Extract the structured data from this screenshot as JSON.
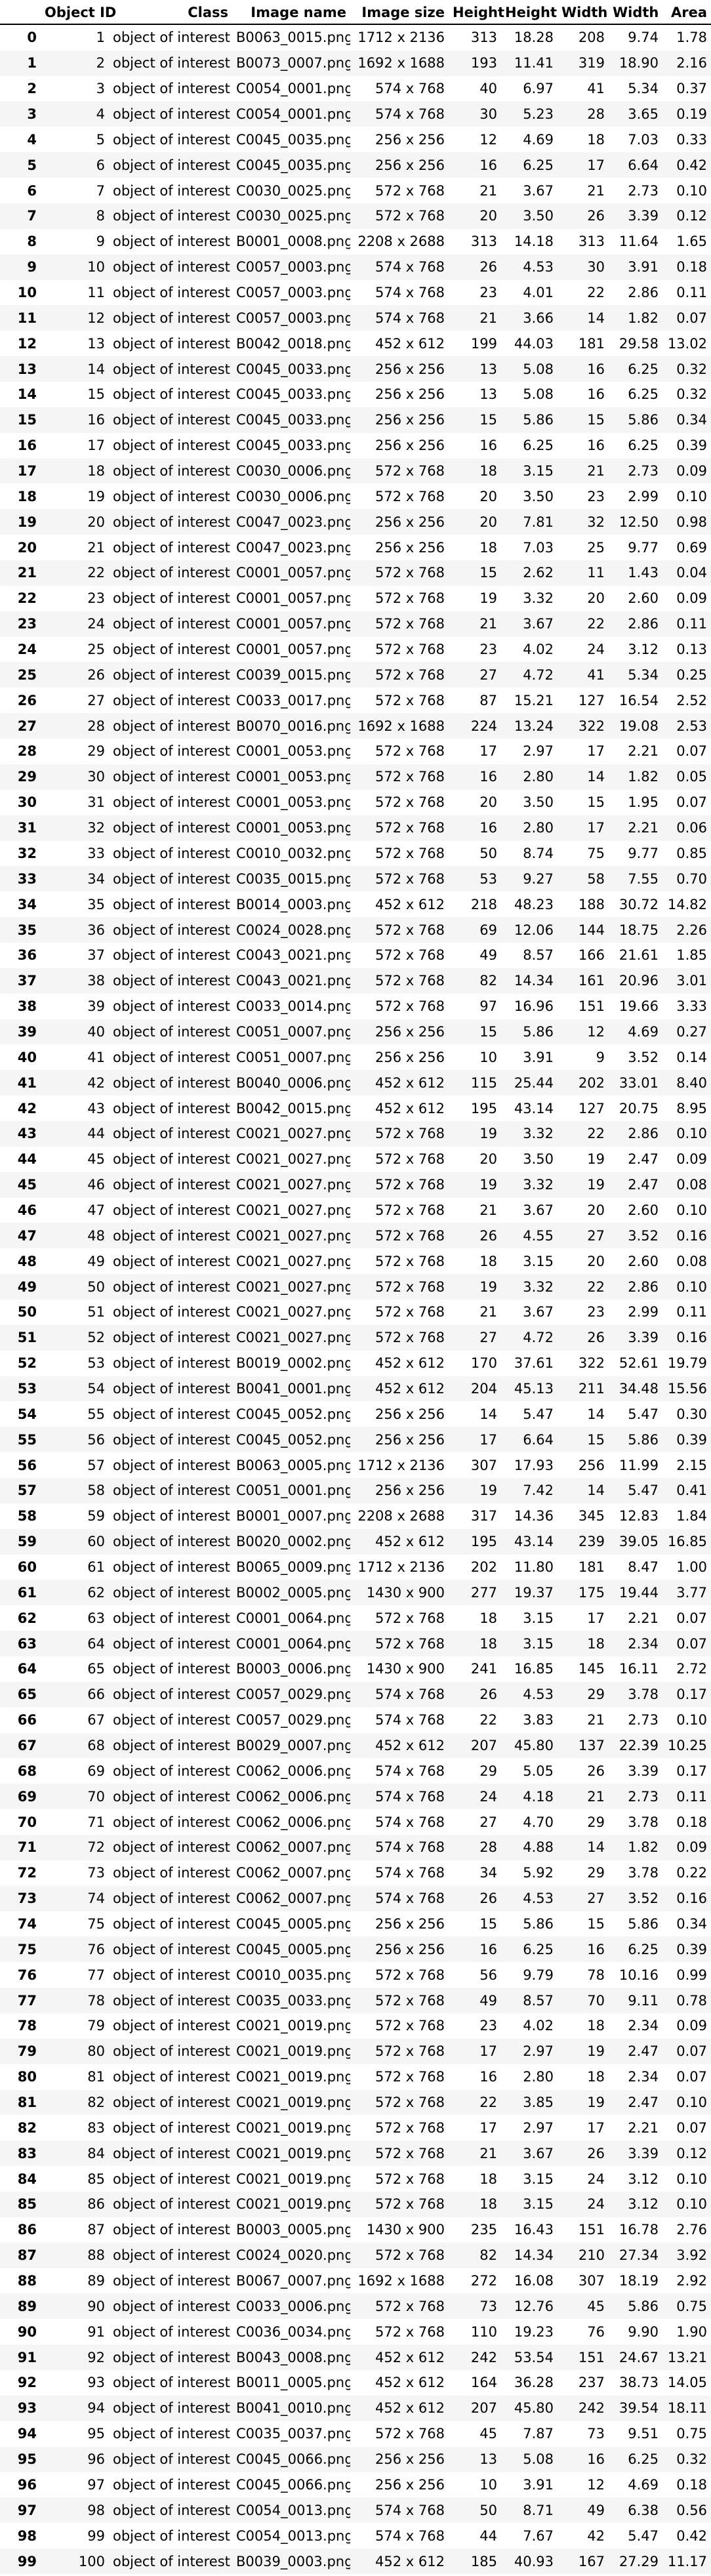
{
  "columns": [
    "",
    "Object ID",
    "Class",
    "Image name",
    "Image size",
    "Height",
    "Height",
    "Width",
    "Width",
    "Area"
  ],
  "rows": [
    [
      "0",
      "1",
      "object of interest",
      "B0063_0015.png",
      "1712 x 2136",
      "313",
      "18.28",
      "208",
      "9.74",
      "1.78"
    ],
    [
      "1",
      "2",
      "object of interest",
      "B0073_0007.png",
      "1692 x 1688",
      "193",
      "11.41",
      "319",
      "18.90",
      "2.16"
    ],
    [
      "2",
      "3",
      "object of interest",
      "C0054_0001.png",
      "574 x 768",
      "40",
      "6.97",
      "41",
      "5.34",
      "0.37"
    ],
    [
      "3",
      "4",
      "object of interest",
      "C0054_0001.png",
      "574 x 768",
      "30",
      "5.23",
      "28",
      "3.65",
      "0.19"
    ],
    [
      "4",
      "5",
      "object of interest",
      "C0045_0035.png",
      "256 x 256",
      "12",
      "4.69",
      "18",
      "7.03",
      "0.33"
    ],
    [
      "5",
      "6",
      "object of interest",
      "C0045_0035.png",
      "256 x 256",
      "16",
      "6.25",
      "17",
      "6.64",
      "0.42"
    ],
    [
      "6",
      "7",
      "object of interest",
      "C0030_0025.png",
      "572 x 768",
      "21",
      "3.67",
      "21",
      "2.73",
      "0.10"
    ],
    [
      "7",
      "8",
      "object of interest",
      "C0030_0025.png",
      "572 x 768",
      "20",
      "3.50",
      "26",
      "3.39",
      "0.12"
    ],
    [
      "8",
      "9",
      "object of interest",
      "B0001_0008.png",
      "2208 x 2688",
      "313",
      "14.18",
      "313",
      "11.64",
      "1.65"
    ],
    [
      "9",
      "10",
      "object of interest",
      "C0057_0003.png",
      "574 x 768",
      "26",
      "4.53",
      "30",
      "3.91",
      "0.18"
    ],
    [
      "10",
      "11",
      "object of interest",
      "C0057_0003.png",
      "574 x 768",
      "23",
      "4.01",
      "22",
      "2.86",
      "0.11"
    ],
    [
      "11",
      "12",
      "object of interest",
      "C0057_0003.png",
      "574 x 768",
      "21",
      "3.66",
      "14",
      "1.82",
      "0.07"
    ],
    [
      "12",
      "13",
      "object of interest",
      "B0042_0018.png",
      "452 x 612",
      "199",
      "44.03",
      "181",
      "29.58",
      "13.02"
    ],
    [
      "13",
      "14",
      "object of interest",
      "C0045_0033.png",
      "256 x 256",
      "13",
      "5.08",
      "16",
      "6.25",
      "0.32"
    ],
    [
      "14",
      "15",
      "object of interest",
      "C0045_0033.png",
      "256 x 256",
      "13",
      "5.08",
      "16",
      "6.25",
      "0.32"
    ],
    [
      "15",
      "16",
      "object of interest",
      "C0045_0033.png",
      "256 x 256",
      "15",
      "5.86",
      "15",
      "5.86",
      "0.34"
    ],
    [
      "16",
      "17",
      "object of interest",
      "C0045_0033.png",
      "256 x 256",
      "16",
      "6.25",
      "16",
      "6.25",
      "0.39"
    ],
    [
      "17",
      "18",
      "object of interest",
      "C0030_0006.png",
      "572 x 768",
      "18",
      "3.15",
      "21",
      "2.73",
      "0.09"
    ],
    [
      "18",
      "19",
      "object of interest",
      "C0030_0006.png",
      "572 x 768",
      "20",
      "3.50",
      "23",
      "2.99",
      "0.10"
    ],
    [
      "19",
      "20",
      "object of interest",
      "C0047_0023.png",
      "256 x 256",
      "20",
      "7.81",
      "32",
      "12.50",
      "0.98"
    ],
    [
      "20",
      "21",
      "object of interest",
      "C0047_0023.png",
      "256 x 256",
      "18",
      "7.03",
      "25",
      "9.77",
      "0.69"
    ],
    [
      "21",
      "22",
      "object of interest",
      "C0001_0057.png",
      "572 x 768",
      "15",
      "2.62",
      "11",
      "1.43",
      "0.04"
    ],
    [
      "22",
      "23",
      "object of interest",
      "C0001_0057.png",
      "572 x 768",
      "19",
      "3.32",
      "20",
      "2.60",
      "0.09"
    ],
    [
      "23",
      "24",
      "object of interest",
      "C0001_0057.png",
      "572 x 768",
      "21",
      "3.67",
      "22",
      "2.86",
      "0.11"
    ],
    [
      "24",
      "25",
      "object of interest",
      "C0001_0057.png",
      "572 x 768",
      "23",
      "4.02",
      "24",
      "3.12",
      "0.13"
    ],
    [
      "25",
      "26",
      "object of interest",
      "C0039_0015.png",
      "572 x 768",
      "27",
      "4.72",
      "41",
      "5.34",
      "0.25"
    ],
    [
      "26",
      "27",
      "object of interest",
      "C0033_0017.png",
      "572 x 768",
      "87",
      "15.21",
      "127",
      "16.54",
      "2.52"
    ],
    [
      "27",
      "28",
      "object of interest",
      "B0070_0016.png",
      "1692 x 1688",
      "224",
      "13.24",
      "322",
      "19.08",
      "2.53"
    ],
    [
      "28",
      "29",
      "object of interest",
      "C0001_0053.png",
      "572 x 768",
      "17",
      "2.97",
      "17",
      "2.21",
      "0.07"
    ],
    [
      "29",
      "30",
      "object of interest",
      "C0001_0053.png",
      "572 x 768",
      "16",
      "2.80",
      "14",
      "1.82",
      "0.05"
    ],
    [
      "30",
      "31",
      "object of interest",
      "C0001_0053.png",
      "572 x 768",
      "20",
      "3.50",
      "15",
      "1.95",
      "0.07"
    ],
    [
      "31",
      "32",
      "object of interest",
      "C0001_0053.png",
      "572 x 768",
      "16",
      "2.80",
      "17",
      "2.21",
      "0.06"
    ],
    [
      "32",
      "33",
      "object of interest",
      "C0010_0032.png",
      "572 x 768",
      "50",
      "8.74",
      "75",
      "9.77",
      "0.85"
    ],
    [
      "33",
      "34",
      "object of interest",
      "C0035_0015.png",
      "572 x 768",
      "53",
      "9.27",
      "58",
      "7.55",
      "0.70"
    ],
    [
      "34",
      "35",
      "object of interest",
      "B0014_0003.png",
      "452 x 612",
      "218",
      "48.23",
      "188",
      "30.72",
      "14.82"
    ],
    [
      "35",
      "36",
      "object of interest",
      "C0024_0028.png",
      "572 x 768",
      "69",
      "12.06",
      "144",
      "18.75",
      "2.26"
    ],
    [
      "36",
      "37",
      "object of interest",
      "C0043_0021.png",
      "572 x 768",
      "49",
      "8.57",
      "166",
      "21.61",
      "1.85"
    ],
    [
      "37",
      "38",
      "object of interest",
      "C0043_0021.png",
      "572 x 768",
      "82",
      "14.34",
      "161",
      "20.96",
      "3.01"
    ],
    [
      "38",
      "39",
      "object of interest",
      "C0033_0014.png",
      "572 x 768",
      "97",
      "16.96",
      "151",
      "19.66",
      "3.33"
    ],
    [
      "39",
      "40",
      "object of interest",
      "C0051_0007.png",
      "256 x 256",
      "15",
      "5.86",
      "12",
      "4.69",
      "0.27"
    ],
    [
      "40",
      "41",
      "object of interest",
      "C0051_0007.png",
      "256 x 256",
      "10",
      "3.91",
      "9",
      "3.52",
      "0.14"
    ],
    [
      "41",
      "42",
      "object of interest",
      "B0040_0006.png",
      "452 x 612",
      "115",
      "25.44",
      "202",
      "33.01",
      "8.40"
    ],
    [
      "42",
      "43",
      "object of interest",
      "B0042_0015.png",
      "452 x 612",
      "195",
      "43.14",
      "127",
      "20.75",
      "8.95"
    ],
    [
      "43",
      "44",
      "object of interest",
      "C0021_0027.png",
      "572 x 768",
      "19",
      "3.32",
      "22",
      "2.86",
      "0.10"
    ],
    [
      "44",
      "45",
      "object of interest",
      "C0021_0027.png",
      "572 x 768",
      "20",
      "3.50",
      "19",
      "2.47",
      "0.09"
    ],
    [
      "45",
      "46",
      "object of interest",
      "C0021_0027.png",
      "572 x 768",
      "19",
      "3.32",
      "19",
      "2.47",
      "0.08"
    ],
    [
      "46",
      "47",
      "object of interest",
      "C0021_0027.png",
      "572 x 768",
      "21",
      "3.67",
      "20",
      "2.60",
      "0.10"
    ],
    [
      "47",
      "48",
      "object of interest",
      "C0021_0027.png",
      "572 x 768",
      "26",
      "4.55",
      "27",
      "3.52",
      "0.16"
    ],
    [
      "48",
      "49",
      "object of interest",
      "C0021_0027.png",
      "572 x 768",
      "18",
      "3.15",
      "20",
      "2.60",
      "0.08"
    ],
    [
      "49",
      "50",
      "object of interest",
      "C0021_0027.png",
      "572 x 768",
      "19",
      "3.32",
      "22",
      "2.86",
      "0.10"
    ],
    [
      "50",
      "51",
      "object of interest",
      "C0021_0027.png",
      "572 x 768",
      "21",
      "3.67",
      "23",
      "2.99",
      "0.11"
    ],
    [
      "51",
      "52",
      "object of interest",
      "C0021_0027.png",
      "572 x 768",
      "27",
      "4.72",
      "26",
      "3.39",
      "0.16"
    ],
    [
      "52",
      "53",
      "object of interest",
      "B0019_0002.png",
      "452 x 612",
      "170",
      "37.61",
      "322",
      "52.61",
      "19.79"
    ],
    [
      "53",
      "54",
      "object of interest",
      "B0041_0001.png",
      "452 x 612",
      "204",
      "45.13",
      "211",
      "34.48",
      "15.56"
    ],
    [
      "54",
      "55",
      "object of interest",
      "C0045_0052.png",
      "256 x 256",
      "14",
      "5.47",
      "14",
      "5.47",
      "0.30"
    ],
    [
      "55",
      "56",
      "object of interest",
      "C0045_0052.png",
      "256 x 256",
      "17",
      "6.64",
      "15",
      "5.86",
      "0.39"
    ],
    [
      "56",
      "57",
      "object of interest",
      "B0063_0005.png",
      "1712 x 2136",
      "307",
      "17.93",
      "256",
      "11.99",
      "2.15"
    ],
    [
      "57",
      "58",
      "object of interest",
      "C0051_0001.png",
      "256 x 256",
      "19",
      "7.42",
      "14",
      "5.47",
      "0.41"
    ],
    [
      "58",
      "59",
      "object of interest",
      "B0001_0007.png",
      "2208 x 2688",
      "317",
      "14.36",
      "345",
      "12.83",
      "1.84"
    ],
    [
      "59",
      "60",
      "object of interest",
      "B0020_0002.png",
      "452 x 612",
      "195",
      "43.14",
      "239",
      "39.05",
      "16.85"
    ],
    [
      "60",
      "61",
      "object of interest",
      "B0065_0009.png",
      "1712 x 2136",
      "202",
      "11.80",
      "181",
      "8.47",
      "1.00"
    ],
    [
      "61",
      "62",
      "object of interest",
      "B0002_0005.png",
      "1430 x 900",
      "277",
      "19.37",
      "175",
      "19.44",
      "3.77"
    ],
    [
      "62",
      "63",
      "object of interest",
      "C0001_0064.png",
      "572 x 768",
      "18",
      "3.15",
      "17",
      "2.21",
      "0.07"
    ],
    [
      "63",
      "64",
      "object of interest",
      "C0001_0064.png",
      "572 x 768",
      "18",
      "3.15",
      "18",
      "2.34",
      "0.07"
    ],
    [
      "64",
      "65",
      "object of interest",
      "B0003_0006.png",
      "1430 x 900",
      "241",
      "16.85",
      "145",
      "16.11",
      "2.72"
    ],
    [
      "65",
      "66",
      "object of interest",
      "C0057_0029.png",
      "574 x 768",
      "26",
      "4.53",
      "29",
      "3.78",
      "0.17"
    ],
    [
      "66",
      "67",
      "object of interest",
      "C0057_0029.png",
      "574 x 768",
      "22",
      "3.83",
      "21",
      "2.73",
      "0.10"
    ],
    [
      "67",
      "68",
      "object of interest",
      "B0029_0007.png",
      "452 x 612",
      "207",
      "45.80",
      "137",
      "22.39",
      "10.25"
    ],
    [
      "68",
      "69",
      "object of interest",
      "C0062_0006.png",
      "574 x 768",
      "29",
      "5.05",
      "26",
      "3.39",
      "0.17"
    ],
    [
      "69",
      "70",
      "object of interest",
      "C0062_0006.png",
      "574 x 768",
      "24",
      "4.18",
      "21",
      "2.73",
      "0.11"
    ],
    [
      "70",
      "71",
      "object of interest",
      "C0062_0006.png",
      "574 x 768",
      "27",
      "4.70",
      "29",
      "3.78",
      "0.18"
    ],
    [
      "71",
      "72",
      "object of interest",
      "C0062_0007.png",
      "574 x 768",
      "28",
      "4.88",
      "14",
      "1.82",
      "0.09"
    ],
    [
      "72",
      "73",
      "object of interest",
      "C0062_0007.png",
      "574 x 768",
      "34",
      "5.92",
      "29",
      "3.78",
      "0.22"
    ],
    [
      "73",
      "74",
      "object of interest",
      "C0062_0007.png",
      "574 x 768",
      "26",
      "4.53",
      "27",
      "3.52",
      "0.16"
    ],
    [
      "74",
      "75",
      "object of interest",
      "C0045_0005.png",
      "256 x 256",
      "15",
      "5.86",
      "15",
      "5.86",
      "0.34"
    ],
    [
      "75",
      "76",
      "object of interest",
      "C0045_0005.png",
      "256 x 256",
      "16",
      "6.25",
      "16",
      "6.25",
      "0.39"
    ],
    [
      "76",
      "77",
      "object of interest",
      "C0010_0035.png",
      "572 x 768",
      "56",
      "9.79",
      "78",
      "10.16",
      "0.99"
    ],
    [
      "77",
      "78",
      "object of interest",
      "C0035_0033.png",
      "572 x 768",
      "49",
      "8.57",
      "70",
      "9.11",
      "0.78"
    ],
    [
      "78",
      "79",
      "object of interest",
      "C0021_0019.png",
      "572 x 768",
      "23",
      "4.02",
      "18",
      "2.34",
      "0.09"
    ],
    [
      "79",
      "80",
      "object of interest",
      "C0021_0019.png",
      "572 x 768",
      "17",
      "2.97",
      "19",
      "2.47",
      "0.07"
    ],
    [
      "80",
      "81",
      "object of interest",
      "C0021_0019.png",
      "572 x 768",
      "16",
      "2.80",
      "18",
      "2.34",
      "0.07"
    ],
    [
      "81",
      "82",
      "object of interest",
      "C0021_0019.png",
      "572 x 768",
      "22",
      "3.85",
      "19",
      "2.47",
      "0.10"
    ],
    [
      "82",
      "83",
      "object of interest",
      "C0021_0019.png",
      "572 x 768",
      "17",
      "2.97",
      "17",
      "2.21",
      "0.07"
    ],
    [
      "83",
      "84",
      "object of interest",
      "C0021_0019.png",
      "572 x 768",
      "21",
      "3.67",
      "26",
      "3.39",
      "0.12"
    ],
    [
      "84",
      "85",
      "object of interest",
      "C0021_0019.png",
      "572 x 768",
      "18",
      "3.15",
      "24",
      "3.12",
      "0.10"
    ],
    [
      "85",
      "86",
      "object of interest",
      "C0021_0019.png",
      "572 x 768",
      "18",
      "3.15",
      "24",
      "3.12",
      "0.10"
    ],
    [
      "86",
      "87",
      "object of interest",
      "B0003_0005.png",
      "1430 x 900",
      "235",
      "16.43",
      "151",
      "16.78",
      "2.76"
    ],
    [
      "87",
      "88",
      "object of interest",
      "C0024_0020.png",
      "572 x 768",
      "82",
      "14.34",
      "210",
      "27.34",
      "3.92"
    ],
    [
      "88",
      "89",
      "object of interest",
      "B0067_0007.png",
      "1692 x 1688",
      "272",
      "16.08",
      "307",
      "18.19",
      "2.92"
    ],
    [
      "89",
      "90",
      "object of interest",
      "C0033_0006.png",
      "572 x 768",
      "73",
      "12.76",
      "45",
      "5.86",
      "0.75"
    ],
    [
      "90",
      "91",
      "object of interest",
      "C0036_0034.png",
      "572 x 768",
      "110",
      "19.23",
      "76",
      "9.90",
      "1.90"
    ],
    [
      "91",
      "92",
      "object of interest",
      "B0043_0008.png",
      "452 x 612",
      "242",
      "53.54",
      "151",
      "24.67",
      "13.21"
    ],
    [
      "92",
      "93",
      "object of interest",
      "B0011_0005.png",
      "452 x 612",
      "164",
      "36.28",
      "237",
      "38.73",
      "14.05"
    ],
    [
      "93",
      "94",
      "object of interest",
      "B0041_0010.png",
      "452 x 612",
      "207",
      "45.80",
      "242",
      "39.54",
      "18.11"
    ],
    [
      "94",
      "95",
      "object of interest",
      "C0035_0037.png",
      "572 x 768",
      "45",
      "7.87",
      "73",
      "9.51",
      "0.75"
    ],
    [
      "95",
      "96",
      "object of interest",
      "C0045_0066.png",
      "256 x 256",
      "13",
      "5.08",
      "16",
      "6.25",
      "0.32"
    ],
    [
      "96",
      "97",
      "object of interest",
      "C0045_0066.png",
      "256 x 256",
      "10",
      "3.91",
      "12",
      "4.69",
      "0.18"
    ],
    [
      "97",
      "98",
      "object of interest",
      "C0054_0013.png",
      "574 x 768",
      "50",
      "8.71",
      "49",
      "6.38",
      "0.56"
    ],
    [
      "98",
      "99",
      "object of interest",
      "C0054_0013.png",
      "574 x 768",
      "44",
      "7.67",
      "42",
      "5.47",
      "0.42"
    ],
    [
      "99",
      "100",
      "object of interest",
      "B0039_0003.png",
      "452 x 612",
      "185",
      "40.93",
      "167",
      "27.29",
      "11.17"
    ]
  ]
}
